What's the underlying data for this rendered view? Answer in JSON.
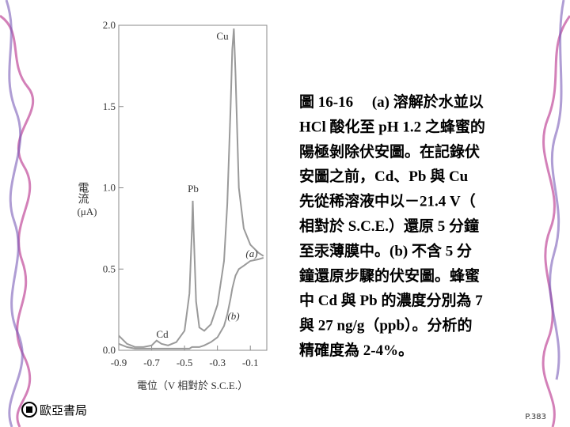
{
  "chart_data": {
    "type": "line",
    "x_label": "電位（V 相對於 S.C.E.）",
    "y_label": "電流",
    "y_unit": "(μA)",
    "x": [
      -0.9,
      -0.85,
      -0.8,
      -0.75,
      -0.7,
      -0.67,
      -0.64,
      -0.6,
      -0.55,
      -0.5,
      -0.47,
      -0.455,
      -0.45,
      -0.445,
      -0.43,
      -0.41,
      -0.38,
      -0.34,
      -0.3,
      -0.26,
      -0.24,
      -0.22,
      -0.21,
      -0.2,
      -0.19,
      -0.17,
      -0.14,
      -0.1,
      -0.05,
      -0.02
    ],
    "series": [
      {
        "name": "(a)",
        "color": "#9a9a9a",
        "values": [
          0.09,
          0.04,
          0.02,
          0.02,
          0.03,
          0.06,
          0.04,
          0.03,
          0.05,
          0.12,
          0.35,
          0.75,
          0.92,
          0.75,
          0.3,
          0.14,
          0.12,
          0.16,
          0.28,
          0.55,
          0.9,
          1.5,
          1.85,
          1.98,
          1.7,
          1.0,
          0.75,
          0.65,
          0.6,
          0.58
        ]
      },
      {
        "name": "(b)",
        "color": "#9a9a9a",
        "values": [
          0.04,
          0.02,
          0.01,
          0.01,
          0.01,
          0.01,
          0.01,
          0.01,
          0.01,
          0.01,
          0.01,
          0.02,
          0.02,
          0.02,
          0.02,
          0.02,
          0.03,
          0.05,
          0.08,
          0.15,
          0.22,
          0.32,
          0.38,
          0.42,
          0.46,
          0.5,
          0.52,
          0.55,
          0.56,
          0.57
        ]
      }
    ],
    "annotations": [
      "Cu",
      "Pb",
      "Cd"
    ],
    "xlim": [
      -0.9,
      0
    ],
    "xticks": [
      -0.9,
      -0.7,
      -0.5,
      -0.3,
      -0.1
    ],
    "ylim": [
      0,
      2
    ],
    "yticks": [
      {
        "value": 0,
        "label": "0.0"
      },
      0.5,
      {
        "value": 1,
        "label": "1.0"
      },
      1.5,
      {
        "value": 2,
        "label": "2.0"
      }
    ],
    "grid": false
  },
  "caption": [
    "圖 16-16 　(a) 溶解於水並以",
    "HCl 酸化至 pH 1.2 之蜂蜜的",
    "陽極剝除伏安圖。在記錄伏",
    "安圖之前，Cd、Pb 與 Cu",
    "先從稀溶液中以－21.4 V（",
    "相對於 S.C.E.）還原 5 分鐘",
    "至汞薄膜中。(b) 不含 5 分",
    "鐘還原步驟的伏安圖。蜂蜜",
    "中 Cd 與 Pb 的濃度分別為 7",
    "與 27 ng/g（ppb）。分析的",
    "精確度為 2-4%。"
  ],
  "publisher": "歐亞書局",
  "page_number": "P.383"
}
